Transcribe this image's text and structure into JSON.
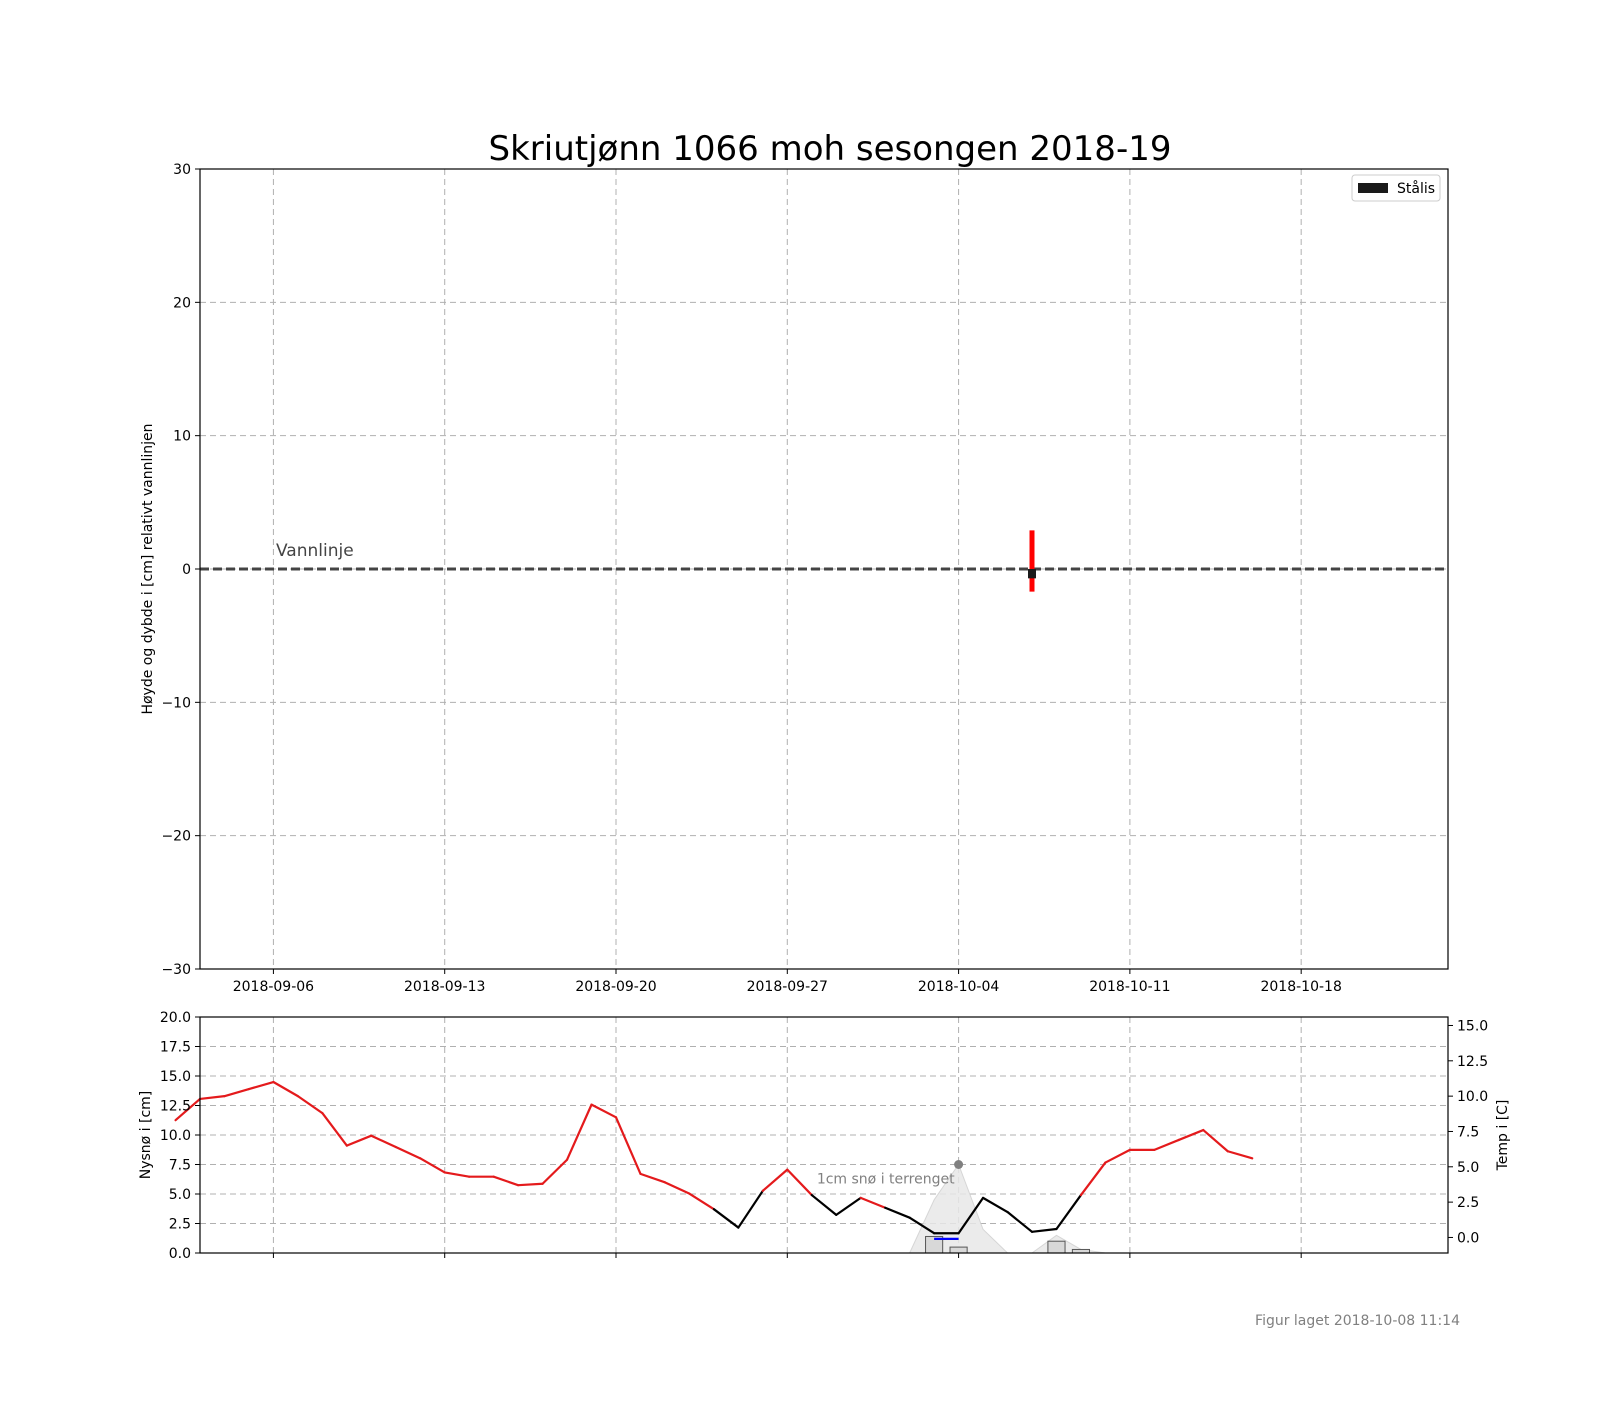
{
  "figure": {
    "title": "Skriutjønn 1066 moh sesongen 2018-19",
    "footer": "Figur laget 2018-10-08 11:14"
  },
  "chart_data": [
    {
      "type": "bar",
      "panel": "ice",
      "title": "Skriutjønn 1066 moh sesongen 2018-19",
      "ylabel": "Høyde og dybde i [cm] relativt vannlinjen",
      "xlabel": "",
      "xlim": [
        "2018-09-03",
        "2018-10-24"
      ],
      "ylim": [
        -30,
        30
      ],
      "yticks": [
        30,
        20,
        10,
        0,
        -10,
        -20,
        -30
      ],
      "ytick_labels": [
        "30",
        "20",
        "10",
        "0",
        "−10",
        "−20",
        "−30"
      ],
      "xticks": [
        "2018-09-06",
        "2018-09-13",
        "2018-09-20",
        "2018-09-27",
        "2018-10-04",
        "2018-10-11",
        "2018-10-18"
      ],
      "grid": true,
      "legend": {
        "position": "top-right",
        "entries": [
          {
            "name": "Stålis",
            "color": "#1a1a1a"
          }
        ]
      },
      "waterline": {
        "label": "Vannlinje",
        "y": 0
      },
      "series": [
        {
          "name": "Stålis",
          "date": "2018-10-07",
          "bottom": -0.7,
          "top": 0,
          "color": "#1a1a1a"
        }
      ],
      "annotations": [
        {
          "kind": "vertical-bar",
          "date": "2018-10-07",
          "from": -1.7,
          "to": 2.9,
          "color": "#ff0000"
        }
      ]
    },
    {
      "type": "line",
      "panel": "weather",
      "ylabel": "Nysnø i [cm]",
      "y2label": "Temp i [C]",
      "ylim": [
        0,
        20
      ],
      "y2lim": [
        -1.1,
        15.6
      ],
      "yticks": [
        "0.0",
        "2.5",
        "5.0",
        "7.5",
        "10.0",
        "12.5",
        "15.0",
        "17.5",
        "20.0"
      ],
      "y2ticks": [
        "0.0",
        "2.5",
        "5.0",
        "7.5",
        "10.0",
        "12.5",
        "15.0"
      ],
      "grid": true,
      "annotation": {
        "text": "1cm snø i terrenget",
        "date": "2018-10-04",
        "value": 7.5
      },
      "temperature": {
        "name": "Temp",
        "warm_color": "#e41a1c",
        "cold_color": "#000000",
        "dates": [
          "2018-09-02",
          "2018-09-03",
          "2018-09-04",
          "2018-09-05",
          "2018-09-06",
          "2018-09-07",
          "2018-09-08",
          "2018-09-09",
          "2018-09-10",
          "2018-09-11",
          "2018-09-12",
          "2018-09-13",
          "2018-09-14",
          "2018-09-15",
          "2018-09-16",
          "2018-09-17",
          "2018-09-18",
          "2018-09-19",
          "2018-09-20",
          "2018-09-21",
          "2018-09-22",
          "2018-09-23",
          "2018-09-24",
          "2018-09-25",
          "2018-09-26",
          "2018-09-27",
          "2018-09-28",
          "2018-09-29",
          "2018-09-30",
          "2018-10-01",
          "2018-10-02",
          "2018-10-03",
          "2018-10-04",
          "2018-10-05",
          "2018-10-06",
          "2018-10-07",
          "2018-10-08",
          "2018-10-09",
          "2018-10-10",
          "2018-10-11",
          "2018-10-12",
          "2018-10-13",
          "2018-10-14",
          "2018-10-15",
          "2018-10-16"
        ],
        "values": [
          8.3,
          9.8,
          10.0,
          10.5,
          11.0,
          10.0,
          8.8,
          6.5,
          7.2,
          6.4,
          5.6,
          4.6,
          4.3,
          4.3,
          3.7,
          3.8,
          5.5,
          9.4,
          8.5,
          4.5,
          3.9,
          3.1,
          2.0,
          0.7,
          3.3,
          4.8,
          3.0,
          1.6,
          2.8,
          2.1,
          1.4,
          0.3,
          0.3,
          2.8,
          1.8,
          0.4,
          0.6,
          3.0,
          5.3,
          6.2,
          6.2,
          6.9,
          7.6,
          6.1,
          5.6
        ]
      },
      "temperature_cold": {
        "name": "Temp under 0",
        "color": "#0000ff",
        "dates": [
          "2018-10-03",
          "2018-10-04"
        ],
        "values": [
          -0.1,
          -0.1
        ]
      },
      "snow_bars": {
        "name": "Nysnø",
        "color": "#d8d8d8",
        "dates": [
          "2018-10-03",
          "2018-10-04",
          "2018-10-08",
          "2018-10-09"
        ],
        "values": [
          1.4,
          0.5,
          1.0,
          0.3
        ]
      },
      "snow_cover": {
        "name": "Snø i terrenget",
        "color": "#e8e8e8",
        "dates": [
          "2018-10-02",
          "2018-10-03",
          "2018-10-04",
          "2018-10-05",
          "2018-10-06",
          "2018-10-07",
          "2018-10-08",
          "2018-10-09",
          "2018-10-10"
        ],
        "values": [
          0,
          4.5,
          7.5,
          2.0,
          0,
          0,
          1.5,
          0.3,
          0
        ]
      }
    }
  ]
}
